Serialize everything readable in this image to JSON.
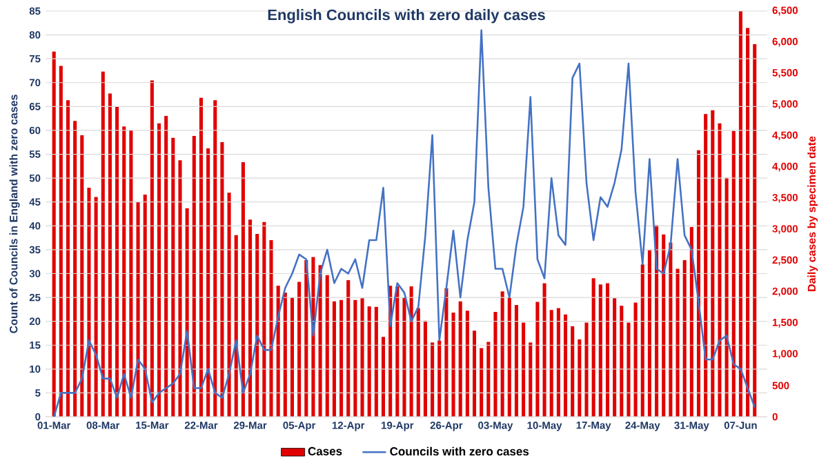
{
  "chart_data": {
    "type": "bar",
    "title": "English Councils with zero daily cases",
    "ylabel": "Count of Councils in England with zero cases",
    "y2label": "Daily cases by specimen date",
    "categories": [
      "01-Mar",
      null,
      null,
      null,
      null,
      null,
      null,
      "08-Mar",
      null,
      null,
      null,
      null,
      null,
      null,
      "15-Mar",
      null,
      null,
      null,
      null,
      null,
      null,
      "22-Mar",
      null,
      null,
      null,
      null,
      null,
      null,
      "29-Mar",
      null,
      null,
      null,
      null,
      null,
      null,
      "05-Apr",
      null,
      null,
      null,
      null,
      null,
      null,
      "12-Apr",
      null,
      null,
      null,
      null,
      null,
      null,
      "19-Apr",
      null,
      null,
      null,
      null,
      null,
      null,
      "26-Apr",
      null,
      null,
      null,
      null,
      null,
      null,
      "03-May",
      null,
      null,
      null,
      null,
      null,
      null,
      "10-May",
      null,
      null,
      null,
      null,
      null,
      null,
      "17-May",
      null,
      null,
      null,
      null,
      null,
      null,
      "24-May",
      null,
      null,
      null,
      null,
      null,
      null,
      "31-May",
      null,
      null,
      null,
      null,
      null,
      null,
      "07-Jun",
      null,
      null
    ],
    "series": [
      {
        "name": "Cases",
        "axis": "y2",
        "color": "#e00000",
        "values": [
          5850,
          5620,
          5070,
          4740,
          4510,
          3670,
          3520,
          5530,
          5180,
          4970,
          4650,
          4590,
          3440,
          3560,
          5390,
          4700,
          4820,
          4470,
          4110,
          3340,
          4500,
          5110,
          4300,
          5070,
          4400,
          3590,
          2910,
          4080,
          3160,
          2930,
          3120,
          2830,
          2100,
          1990,
          1910,
          2160,
          2510,
          2560,
          2430,
          2270,
          1850,
          1870,
          2190,
          1870,
          1900,
          1770,
          1760,
          1280,
          2100,
          2090,
          1910,
          2090,
          1740,
          1540,
          1190,
          1220,
          2060,
          1670,
          1850,
          1700,
          1380,
          1100,
          1200,
          1680,
          2010,
          1910,
          1790,
          1510,
          1190,
          1840,
          2140,
          1710,
          1740,
          1640,
          1450,
          1240,
          1510,
          2220,
          2120,
          2140,
          1900,
          1780,
          1510,
          1830,
          2440,
          2670,
          3070,
          2920,
          2790,
          2370,
          2510,
          3040,
          4270,
          4850,
          4910,
          4700,
          3830,
          4580,
          6500,
          6230,
          5970
        ]
      },
      {
        "name": "Councils with zero cases",
        "type": "line",
        "axis": "y",
        "color": "#4472c4",
        "values": [
          0,
          5,
          5,
          5,
          8,
          16,
          13,
          8,
          8,
          4,
          9,
          4,
          12,
          10,
          3,
          5,
          6,
          7,
          9,
          18,
          6,
          6,
          10,
          5,
          4,
          9,
          16,
          5,
          9,
          17,
          14,
          14,
          21,
          27,
          30,
          34,
          33,
          17,
          30,
          35,
          28,
          31,
          30,
          33,
          27,
          37,
          37,
          48,
          19,
          28,
          26,
          20,
          23,
          38,
          59,
          16,
          27,
          39,
          25,
          37,
          45,
          81,
          48,
          31,
          31,
          25,
          36,
          44,
          67,
          33,
          29,
          50,
          38,
          36,
          71,
          74,
          49,
          37,
          46,
          44,
          49,
          56,
          74,
          47,
          32,
          54,
          31,
          30,
          36,
          54,
          38,
          35,
          24,
          12,
          12,
          16,
          17,
          11,
          10,
          6,
          2
        ]
      }
    ],
    "ylim": [
      0,
      85
    ],
    "yticks": [
      0,
      5,
      10,
      15,
      20,
      25,
      30,
      35,
      40,
      45,
      50,
      55,
      60,
      65,
      70,
      75,
      80,
      85
    ],
    "y2lim": [
      0,
      6500
    ],
    "y2ticks": [
      0,
      500,
      {
        "value": 1000,
        "label": "1,000"
      },
      {
        "value": 1500,
        "label": "1,500"
      },
      {
        "value": 2000,
        "label": "2,000"
      },
      {
        "value": 2500,
        "label": "2,500"
      },
      {
        "value": 3000,
        "label": "3,000"
      },
      {
        "value": 3500,
        "label": "3,500"
      },
      {
        "value": 4000,
        "label": "4,000"
      },
      {
        "value": 4500,
        "label": "4,500"
      },
      {
        "value": 5000,
        "label": "5,000"
      },
      {
        "value": 5500,
        "label": "5,500"
      },
      {
        "value": 6000,
        "label": "6,000"
      },
      {
        "value": 6500,
        "label": "6,500"
      }
    ],
    "grid": "y",
    "legend": "bottom"
  }
}
